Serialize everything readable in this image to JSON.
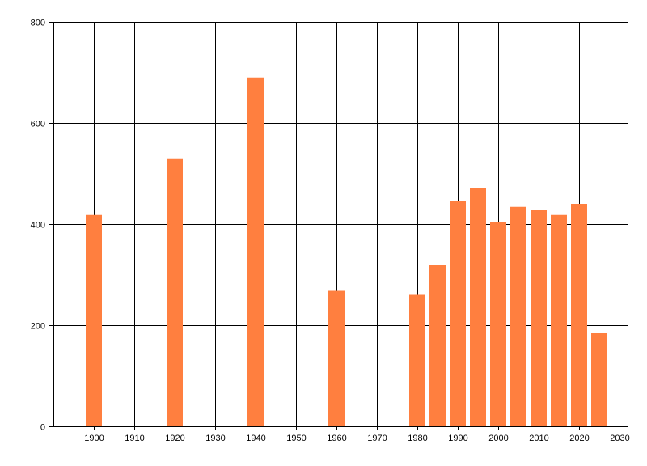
{
  "chart_data": {
    "type": "bar",
    "title": "",
    "xlabel": "",
    "ylabel": "",
    "x": [
      1900,
      1920,
      1940,
      1960,
      1980,
      1985,
      1990,
      1995,
      2000,
      2005,
      2010,
      2015,
      2020,
      2025
    ],
    "values": [
      418,
      530,
      690,
      268,
      260,
      320,
      445,
      472,
      404,
      434,
      428,
      418,
      440,
      184
    ],
    "xlim": [
      1890,
      2032
    ],
    "ylim": [
      0,
      800
    ],
    "x_ticks": [
      1900,
      1910,
      1920,
      1930,
      1940,
      1950,
      1960,
      1970,
      1980,
      1990,
      2000,
      2010,
      2020,
      2030
    ],
    "y_ticks": [
      0,
      200,
      400,
      600,
      800
    ],
    "grid": true,
    "bar_color": "#ff7f3f",
    "grid_color": "#000000"
  }
}
